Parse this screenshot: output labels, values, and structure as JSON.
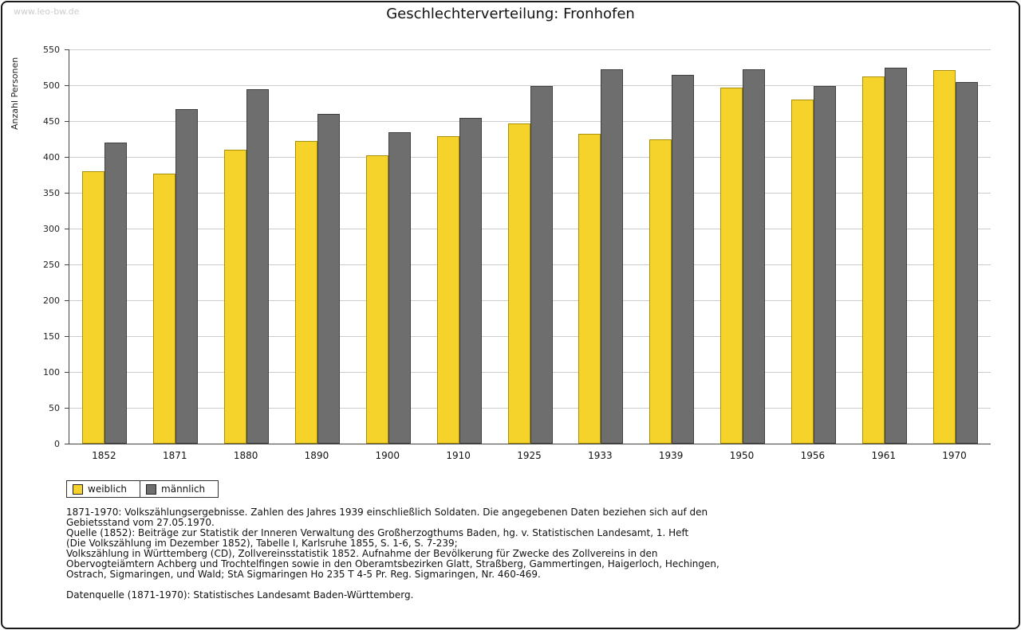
{
  "watermark": "www.leo-bw.de",
  "title": "Geschlechterverteilung: Fronhofen",
  "chart_data": {
    "type": "bar",
    "title": "Geschlechterverteilung: Fronhofen",
    "categories": [
      "1852",
      "1871",
      "1880",
      "1890",
      "1900",
      "1910",
      "1925",
      "1933",
      "1939",
      "1950",
      "1956",
      "1961",
      "1970"
    ],
    "series": [
      {
        "key": "weiblich",
        "name": "weiblich",
        "color": "#F5D32A",
        "border": "#A8900A",
        "values": [
          380,
          377,
          410,
          422,
          402,
          429,
          447,
          432,
          424,
          497,
          480,
          512,
          521
        ]
      },
      {
        "key": "maennlich",
        "name": "männlich",
        "color": "#6E6E6E",
        "border": "#3F3F3F",
        "values": [
          420,
          467,
          494,
          460,
          434,
          455,
          499,
          522,
          515,
          522,
          499,
          524,
          504
        ]
      }
    ],
    "xlabel": "",
    "ylabel": "Anzahl Personen",
    "ylim": [
      0,
      550
    ],
    "ytick_step": 50,
    "grid": true,
    "legend_position": "bottom-left"
  },
  "footnotes": {
    "lines": [
      "1871-1970: Volkszählungsergebnisse. Zahlen des Jahres 1939 einschließlich Soldaten. Die angegebenen Daten beziehen sich auf den",
      "Gebietsstand vom 27.05.1970.",
      "Quelle (1852): Beiträge zur Statistik der Inneren Verwaltung des Großherzogthums Baden, hg. v. Statistischen Landesamt, 1. Heft",
      "(Die Volkszählung im Dezember 1852), Tabelle I, Karlsruhe 1855, S. 1-6, S. 7-239;",
      "Volkszählung in Württemberg (CD), Zollvereinsstatistik 1852. Aufnahme der Bevölkerung für Zwecke des Zollvereins in den",
      "Obervogteiämtern Achberg und Trochtelfingen sowie in den Oberamtsbezirken Glatt, Straßberg, Gammertingen, Haigerloch, Hechingen,",
      "Ostrach, Sigmaringen, und Wald; StA Sigmaringen Ho 235 T 4-5 Pr. Reg. Sigmaringen, Nr. 460-469."
    ],
    "datasource": "Datenquelle (1871-1970): Statistisches Landesamt Baden-Württemberg."
  }
}
